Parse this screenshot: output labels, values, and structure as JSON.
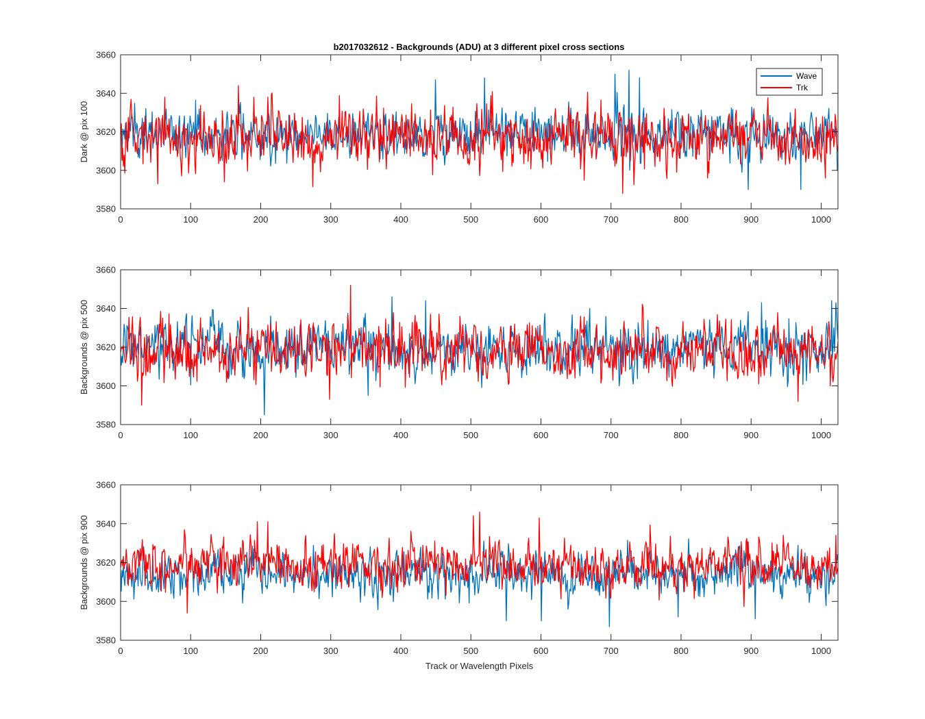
{
  "figure_title": "b2017032612 - Backgrounds (ADU) at 3 different pixel cross sections",
  "legend": {
    "entries": [
      "Wave",
      "Trk"
    ],
    "placement": "top-right (top subplot)"
  },
  "colors": {
    "wave": "#0072BD",
    "trk": "#FF0000",
    "axis": "#262626",
    "background": "#ffffff"
  },
  "chart_data": [
    {
      "type": "line",
      "title": "b2017032612 - Backgrounds (ADU) at 3 different pixel cross sections",
      "xlabel": "",
      "ylabel": "Dark @ pix 100",
      "xlim": [
        0,
        1024
      ],
      "ylim": [
        3580,
        3660
      ],
      "xticks": [
        0,
        100,
        200,
        300,
        400,
        500,
        600,
        700,
        800,
        900,
        1000
      ],
      "yticks": [
        3580,
        3600,
        3620,
        3640,
        3660
      ],
      "grid": false,
      "series": [
        {
          "name": "Wave",
          "mean": 3619,
          "noise_sd": 6.5,
          "min": 3590,
          "max": 3652,
          "peaks": [
            [
              449,
              3647
            ],
            [
              519,
              3648
            ],
            [
              705,
              3650
            ],
            [
              725,
              3652
            ],
            [
              740,
              3648
            ],
            [
              895,
              3590
            ],
            [
              970,
              3590
            ]
          ]
        },
        {
          "name": "Trk",
          "mean": 3617,
          "noise_sd": 7.5,
          "min": 3588,
          "max": 3644,
          "peaks": [
            [
              53,
              3593
            ],
            [
              63,
              3638
            ],
            [
              148,
              3594
            ],
            [
              168,
              3644
            ],
            [
              210,
              3638
            ],
            [
              716,
              3588
            ],
            [
              837,
              3596
            ],
            [
              1005,
              3596
            ]
          ]
        }
      ],
      "n_points": 1024
    },
    {
      "type": "line",
      "title": "",
      "xlabel": "",
      "ylabel": "Backgrounds @ pix 500",
      "xlim": [
        0,
        1024
      ],
      "ylim": [
        3580,
        3660
      ],
      "xticks": [
        0,
        100,
        200,
        300,
        400,
        500,
        600,
        700,
        800,
        900,
        1000
      ],
      "yticks": [
        3580,
        3600,
        3620,
        3640,
        3660
      ],
      "grid": false,
      "series": [
        {
          "name": "Wave",
          "mean": 3619,
          "noise_sd": 7,
          "min": 3585,
          "max": 3646,
          "peaks": [
            [
              205,
              3585
            ],
            [
              387,
              3646
            ],
            [
              435,
              3644
            ],
            [
              914,
              3643
            ],
            [
              1014,
              3644
            ],
            [
              1020,
              3643
            ]
          ]
        },
        {
          "name": "Trk",
          "mean": 3618,
          "noise_sd": 7.5,
          "min": 3590,
          "max": 3652,
          "peaks": [
            [
              30,
              3590
            ],
            [
              328,
              3652
            ],
            [
              298,
              3593
            ],
            [
              966,
              3592
            ],
            [
              1012,
              3600
            ]
          ]
        }
      ],
      "n_points": 1024
    },
    {
      "type": "line",
      "title": "",
      "xlabel": "Track or Wavelength Pixels",
      "ylabel": "Backgrounds @ pix 900",
      "xlim": [
        0,
        1024
      ],
      "ylim": [
        3580,
        3660
      ],
      "xticks": [
        0,
        100,
        200,
        300,
        400,
        500,
        600,
        700,
        800,
        900,
        1000
      ],
      "yticks": [
        3580,
        3600,
        3620,
        3640,
        3660
      ],
      "grid": false,
      "series": [
        {
          "name": "Wave",
          "mean": 3614,
          "noise_sd": 6,
          "min": 3587,
          "max": 3640,
          "peaks": [
            [
              550,
              3590
            ],
            [
              600,
              3590
            ],
            [
              697,
              3587
            ],
            [
              795,
              3592
            ],
            [
              905,
              3591
            ]
          ]
        },
        {
          "name": "Trk",
          "mean": 3619,
          "noise_sd": 6.5,
          "min": 3594,
          "max": 3646,
          "peaks": [
            [
              95,
              3594
            ],
            [
              195,
              3641
            ],
            [
              210,
              3641
            ],
            [
              503,
              3644
            ],
            [
              512,
              3646
            ],
            [
              597,
              3643
            ],
            [
              1020,
              3634
            ]
          ]
        }
      ],
      "n_points": 1024
    }
  ]
}
